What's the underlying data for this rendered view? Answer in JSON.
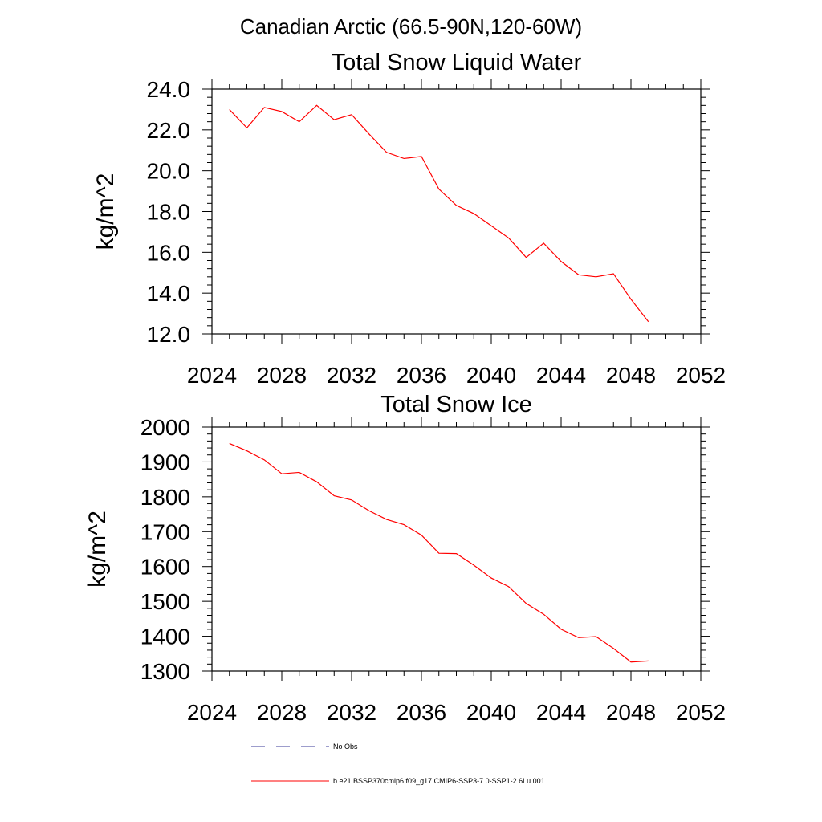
{
  "figure_title": "Canadian Arctic (66.5-90N,120-60W)",
  "legend": [
    {
      "label": "No Obs",
      "color": "#3b3b9a",
      "style": "dashed"
    },
    {
      "label": "b.e21.BSSP370cmip6.f09_g17.CMIP6-SSP3-7.0-SSP1-2.6Lu.001",
      "color": "#ff0000",
      "style": "solid"
    }
  ],
  "chart_data": [
    {
      "type": "line",
      "title": "Total Snow Liquid Water",
      "xlabel": "",
      "ylabel": "kg/m^2",
      "xlim": [
        2024,
        2052
      ],
      "ylim": [
        12,
        24
      ],
      "x_ticks": [
        2024,
        2028,
        2032,
        2036,
        2040,
        2044,
        2048,
        2052
      ],
      "y_ticks": [
        12,
        14,
        16,
        18,
        20,
        22,
        24
      ],
      "y_tick_labels": [
        "12.0",
        "14.0",
        "16.0",
        "18.0",
        "20.0",
        "22.0",
        "24.0"
      ],
      "x": [
        2025,
        2026,
        2027,
        2028,
        2029,
        2030,
        2031,
        2032,
        2033,
        2034,
        2035,
        2036,
        2037,
        2038,
        2039,
        2040,
        2041,
        2042,
        2043,
        2044,
        2045,
        2046,
        2047,
        2048,
        2049
      ],
      "series": [
        {
          "color": "#ff0000",
          "values": [
            23.0,
            22.1,
            23.1,
            22.9,
            22.4,
            23.2,
            22.5,
            22.75,
            21.8,
            20.9,
            20.6,
            20.7,
            19.1,
            18.3,
            17.9,
            17.3,
            16.7,
            15.75,
            16.45,
            15.55,
            14.9,
            14.8,
            14.95,
            13.7,
            12.6
          ]
        }
      ]
    },
    {
      "type": "line",
      "title": "Total Snow Ice",
      "xlabel": "",
      "ylabel": "kg/m^2",
      "xlim": [
        2024,
        2052
      ],
      "ylim": [
        1300,
        2000
      ],
      "x_ticks": [
        2024,
        2028,
        2032,
        2036,
        2040,
        2044,
        2048,
        2052
      ],
      "y_ticks": [
        1300,
        1400,
        1500,
        1600,
        1700,
        1800,
        1900,
        2000
      ],
      "y_tick_labels": [
        "1300",
        "1400",
        "1500",
        "1600",
        "1700",
        "1800",
        "1900",
        "2000"
      ],
      "x": [
        2025,
        2026,
        2027,
        2028,
        2029,
        2030,
        2031,
        2032,
        2033,
        2034,
        2035,
        2036,
        2037,
        2038,
        2039,
        2040,
        2041,
        2042,
        2043,
        2044,
        2045,
        2046,
        2047,
        2048,
        2049
      ],
      "series": [
        {
          "color": "#ff0000",
          "values": [
            1953,
            1932,
            1906,
            1866,
            1870,
            1843,
            1803,
            1791,
            1760,
            1735,
            1720,
            1690,
            1638,
            1637,
            1604,
            1567,
            1542,
            1494,
            1463,
            1420,
            1396,
            1399,
            1365,
            1326,
            1329
          ]
        }
      ]
    }
  ]
}
